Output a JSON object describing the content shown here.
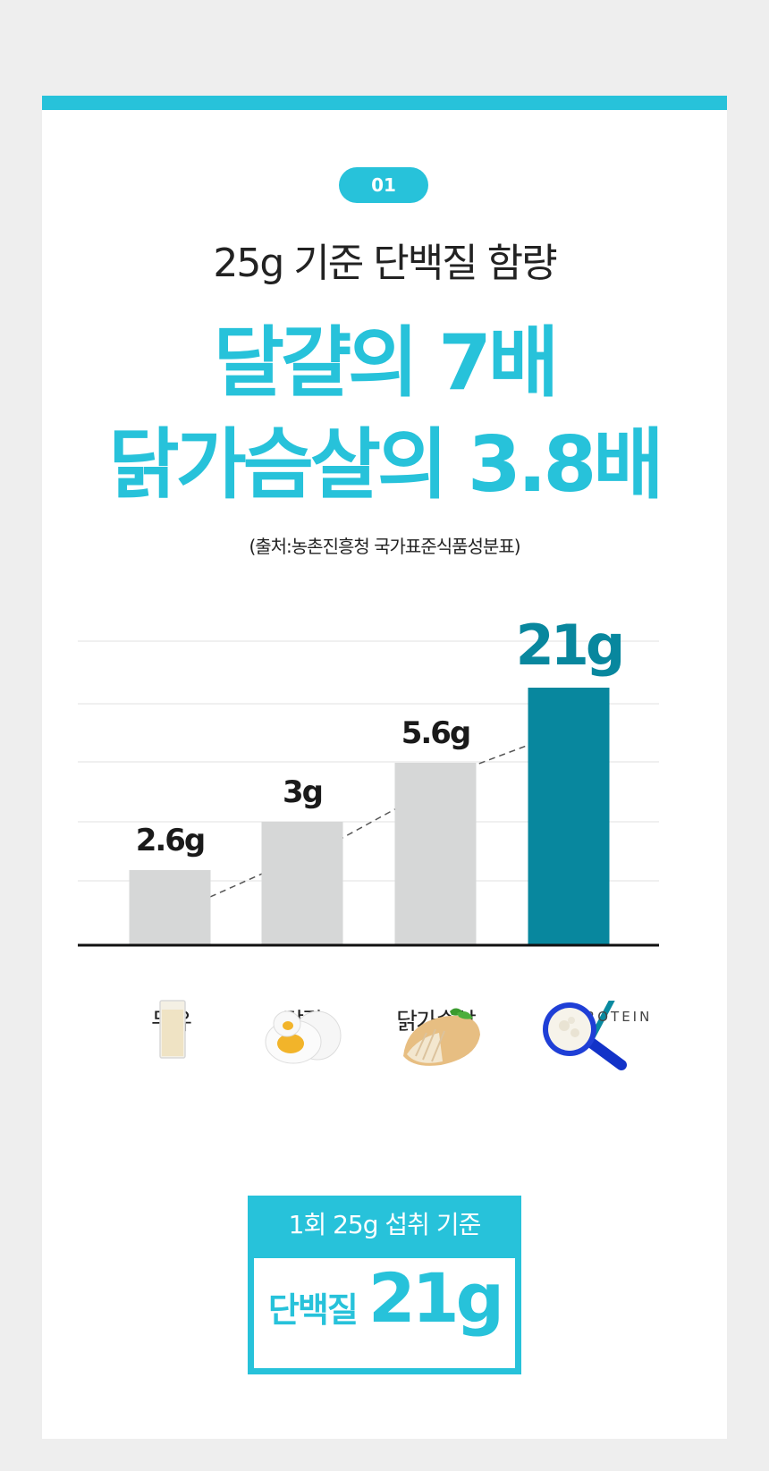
{
  "badge": "01",
  "subtitle": "25g 기준 단백질 함량",
  "headline": {
    "line1": "달걀의 7배",
    "line2": "닭가슴살의 3.8배"
  },
  "source": "(출처:농촌진흥청 국가표준식품성분표)",
  "chart_data": {
    "type": "bar",
    "categories": [
      "두유",
      "달걀",
      "닭가슴살",
      "MYPROTEIN"
    ],
    "values": [
      2.6,
      3,
      5.6,
      21
    ],
    "data_labels": [
      "2.6g",
      "3g",
      "5.6g",
      "21g"
    ],
    "unit": "g",
    "grid": true,
    "highlight_index": 3,
    "colors": {
      "bar": "#d6d7d7",
      "highlight": "#08879e",
      "label": "#1a1a1a",
      "highlight_label": "#08879e"
    }
  },
  "logo": {
    "text": "MYPROTEIN"
  },
  "images": [
    "soy-milk-glass",
    "boiled-eggs",
    "sliced-chicken-breast",
    "protein-powder-scoop"
  ],
  "summary": {
    "top_text": "1회 25g 섭취 기준",
    "label": "단백질",
    "value": "21g"
  },
  "colors": {
    "accent": "#27c2da",
    "dark_accent": "#08879e",
    "background": "#eeeeee"
  }
}
